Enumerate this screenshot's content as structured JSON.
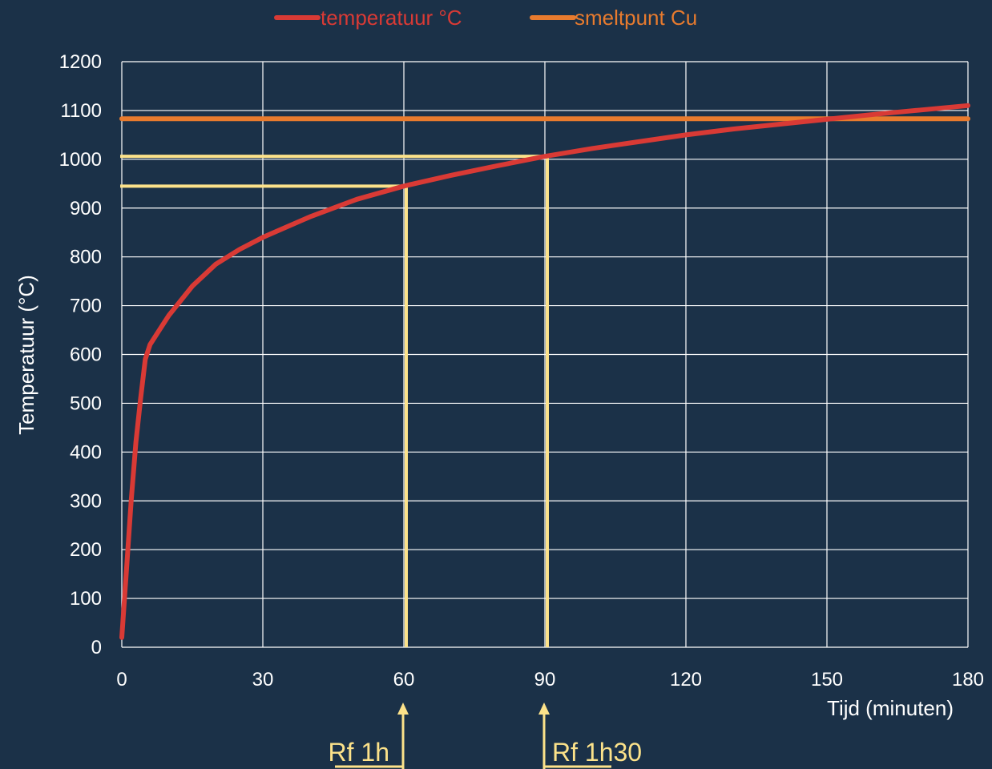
{
  "chart_data": {
    "type": "line",
    "xlabel": "Tijd (minuten)",
    "ylabel": "Temperatuur (°C)",
    "xlim": [
      0,
      180
    ],
    "ylim": [
      0,
      1200
    ],
    "x_ticks": [
      0,
      30,
      60,
      90,
      120,
      150,
      180
    ],
    "y_ticks": [
      0,
      100,
      200,
      300,
      400,
      500,
      600,
      700,
      800,
      900,
      1000,
      1100,
      1200
    ],
    "grid": true,
    "legend": "top-center",
    "series": [
      {
        "name": "temperatuur °C",
        "color": "#d93a35",
        "x": [
          0,
          1,
          2,
          3,
          4,
          5,
          6,
          8,
          10,
          15,
          20,
          25,
          30,
          40,
          50,
          60,
          70,
          80,
          90,
          100,
          110,
          120,
          130,
          140,
          150,
          160,
          170,
          180
        ],
        "y": [
          20,
          160,
          300,
          420,
          510,
          590,
          620,
          650,
          680,
          740,
          785,
          815,
          840,
          882,
          918,
          945,
          967,
          987,
          1006,
          1022,
          1036,
          1050,
          1062,
          1072,
          1082,
          1092,
          1101,
          1110
        ]
      },
      {
        "name": "smeltpunt Cu",
        "color": "#e87b2e",
        "x": [
          0,
          180
        ],
        "y": [
          1083,
          1083
        ]
      }
    ],
    "annotations": [
      {
        "label": "Rf 1h",
        "x": 60,
        "y": 945,
        "side": "left"
      },
      {
        "label": "Rf 1h30",
        "x": 90,
        "y": 1006,
        "side": "right"
      }
    ],
    "annotation_color": "#fce28a"
  }
}
